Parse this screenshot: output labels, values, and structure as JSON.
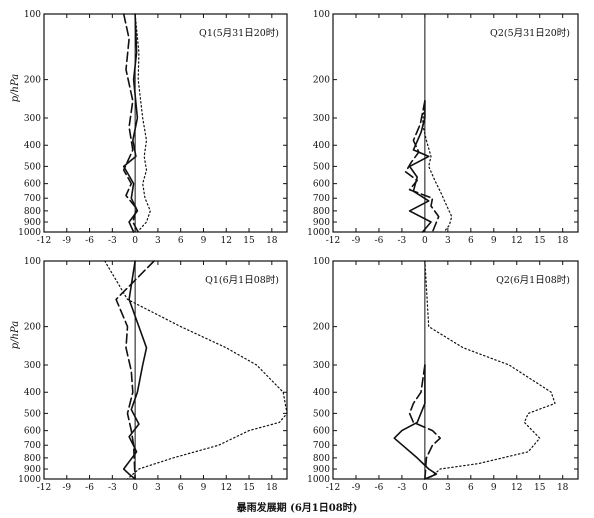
{
  "footer_caption": "暴雨发展期 (6月1日08时)",
  "chart_data": [
    {
      "type": "line",
      "title": "Q1(5月31日20时)",
      "ylabel": "p/hPa",
      "y_scale": "log",
      "y_inverted": true,
      "xlim": [
        -12,
        20
      ],
      "ylim": [
        1000,
        100
      ],
      "x_ticks": [
        -12,
        -9,
        -6,
        -3,
        0,
        3,
        6,
        9,
        12,
        15,
        18
      ],
      "y_ticks": [
        100,
        200,
        300,
        400,
        500,
        600,
        700,
        800,
        900,
        1000
      ],
      "series": [
        {
          "style": "solid",
          "x": [
            0,
            0.2,
            -0.2,
            0.3,
            -0.3,
            0.1,
            -1.5,
            -0.2,
            -0.5,
            0.3,
            -0.8,
            -0.2
          ],
          "y": [
            100,
            150,
            200,
            300,
            380,
            450,
            500,
            600,
            700,
            800,
            900,
            1000
          ]
        },
        {
          "style": "dashed",
          "x": [
            -1.5,
            -0.8,
            -1.2,
            -0.3,
            -0.8,
            -0.3,
            -1.5,
            -0.5,
            -1.2,
            0.2,
            -0.3,
            0.4
          ],
          "y": [
            100,
            130,
            180,
            250,
            330,
            420,
            520,
            600,
            680,
            780,
            900,
            1000
          ]
        },
        {
          "style": "dotted",
          "x": [
            0,
            0.5,
            0.4,
            1.0,
            1.5,
            1.2,
            1.5,
            1.0,
            1.3,
            2.0,
            1.5,
            0.3
          ],
          "y": [
            100,
            150,
            200,
            300,
            380,
            450,
            520,
            600,
            700,
            800,
            900,
            1000
          ]
        }
      ]
    },
    {
      "type": "line",
      "title": "Q2(5月31日20时)",
      "ylabel": "",
      "y_scale": "log",
      "y_inverted": true,
      "xlim": [
        -12,
        20
      ],
      "ylim": [
        1000,
        100
      ],
      "x_ticks": [
        -12,
        -9,
        -6,
        -3,
        0,
        3,
        6,
        9,
        12,
        15,
        18
      ],
      "y_ticks": [
        100,
        200,
        300,
        400,
        500,
        600,
        700,
        800,
        900,
        1000
      ],
      "series": [
        {
          "style": "solid",
          "x": [
            0,
            0,
            -0.5,
            -1.5,
            0.5,
            -2.0,
            -1.0,
            -1.5,
            0.5,
            -2.0,
            0.8,
            -0.3
          ],
          "y": [
            250,
            300,
            350,
            420,
            450,
            500,
            560,
            650,
            720,
            800,
            900,
            1000
          ]
        },
        {
          "style": "dashed",
          "x": [
            0,
            -0.6,
            -1.5,
            -0.8,
            -1.8,
            -2.5,
            -1.0,
            -2.0,
            1.0,
            0.8,
            1.8,
            1.0
          ],
          "y": [
            250,
            320,
            380,
            430,
            480,
            530,
            580,
            640,
            700,
            760,
            850,
            1000
          ]
        },
        {
          "style": "dotted",
          "x": [
            0,
            -0.3,
            0.2,
            0.8,
            0.5,
            1.3,
            2.0,
            2.8,
            3.5,
            3.2,
            2.5
          ],
          "y": [
            250,
            320,
            380,
            450,
            500,
            580,
            650,
            750,
            850,
            930,
            1000
          ]
        }
      ]
    },
    {
      "type": "line",
      "title": "Q1(6月1日08时)",
      "ylabel": "p/hPa",
      "y_scale": "log",
      "y_inverted": true,
      "xlim": [
        -12,
        20
      ],
      "ylim": [
        1000,
        100
      ],
      "x_ticks": [
        -12,
        -9,
        -6,
        -3,
        0,
        3,
        6,
        9,
        12,
        15,
        18
      ],
      "y_ticks": [
        100,
        200,
        300,
        400,
        500,
        600,
        700,
        800,
        900,
        1000
      ],
      "series": [
        {
          "style": "solid",
          "x": [
            0,
            -0.8,
            0.5,
            1.5,
            1.0,
            0.3,
            -0.5,
            0.5,
            -0.8,
            0.2,
            -1.5,
            -0.8,
            0
          ],
          "y": [
            100,
            150,
            200,
            250,
            300,
            400,
            480,
            560,
            640,
            750,
            900,
            950,
            1000
          ]
        },
        {
          "style": "dashed",
          "x": [
            2.5,
            -2.5,
            -1.0,
            -1.2,
            -0.5,
            -0.3,
            -1.0,
            -0.5,
            -0.2,
            0
          ],
          "y": [
            100,
            150,
            200,
            250,
            320,
            400,
            500,
            600,
            700,
            1000
          ]
        },
        {
          "style": "dotted",
          "x": [
            -4.0,
            -1.0,
            6.0,
            12.0,
            16.0,
            19.5,
            20.0,
            19.0,
            15.0,
            11.0,
            5.0,
            0.5,
            -1.0
          ],
          "y": [
            100,
            150,
            200,
            250,
            300,
            400,
            500,
            550,
            600,
            700,
            800,
            900,
            1000
          ]
        }
      ]
    },
    {
      "type": "line",
      "title": "Q2(6月1日08时)",
      "ylabel": "",
      "y_scale": "log",
      "y_inverted": true,
      "xlim": [
        -12,
        20
      ],
      "ylim": [
        1000,
        100
      ],
      "x_ticks": [
        -12,
        -9,
        -6,
        -3,
        0,
        3,
        6,
        9,
        12,
        15,
        18
      ],
      "y_ticks": [
        100,
        200,
        300,
        400,
        500,
        600,
        700,
        800,
        900,
        1000
      ],
      "series": [
        {
          "style": "solid",
          "x": [
            0,
            0,
            -1.0,
            -3.0,
            -4.0,
            -1.0,
            0.5,
            1.5,
            0
          ],
          "y": [
            300,
            450,
            550,
            600,
            650,
            800,
            900,
            950,
            1000
          ]
        },
        {
          "style": "dashed",
          "x": [
            0,
            -0.5,
            -1.5,
            -2.0,
            -1.5,
            1.0,
            2.0,
            1.0,
            0.2,
            0
          ],
          "y": [
            300,
            400,
            450,
            500,
            550,
            600,
            650,
            700,
            800,
            1000
          ]
        },
        {
          "style": "dotted",
          "x": [
            0,
            0.5,
            5.0,
            11.0,
            16.5,
            17.0,
            13.5,
            13.0,
            15.0,
            13.5,
            7.0,
            2.0,
            0.5
          ],
          "y": [
            100,
            200,
            250,
            300,
            400,
            450,
            500,
            550,
            650,
            750,
            850,
            900,
            1000
          ]
        }
      ]
    }
  ]
}
